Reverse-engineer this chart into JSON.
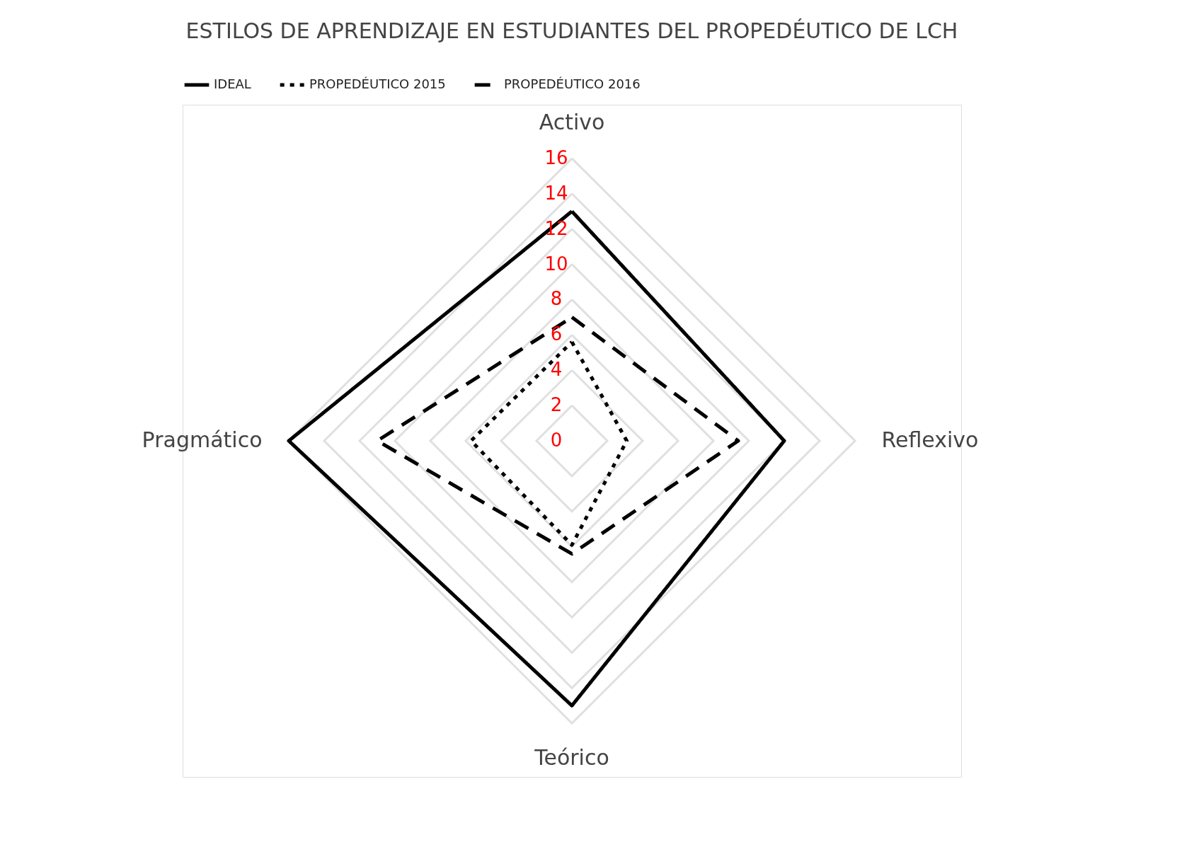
{
  "chart_data": {
    "type": "radar",
    "title": "ESTILOS DE APRENDIZAJE EN ESTUDIANTES DEL PROPEDÉUTICO DE LCH",
    "categories": [
      "Activo",
      "Reflexivo",
      "Teórico",
      "Pragmático"
    ],
    "series": [
      {
        "name": "IDEAL",
        "color": "#000000",
        "line_style": "solid",
        "values": [
          13,
          12,
          15,
          16
        ]
      },
      {
        "name": "PROPEDÉUTICO 2015",
        "color": "#000000",
        "line_style": "dotted",
        "values": [
          5.6,
          3.1,
          5.9,
          5.7
        ]
      },
      {
        "name": "PROPEDÉUTICO 2016",
        "color": "#000000",
        "line_style": "dashed",
        "values": [
          7,
          9.4,
          6.4,
          11
        ]
      }
    ],
    "ylim": [
      0,
      16
    ],
    "yticks": [
      0,
      2,
      4,
      6,
      8,
      10,
      12,
      14,
      16
    ],
    "grid": true,
    "legend": "top",
    "marker": "none"
  }
}
